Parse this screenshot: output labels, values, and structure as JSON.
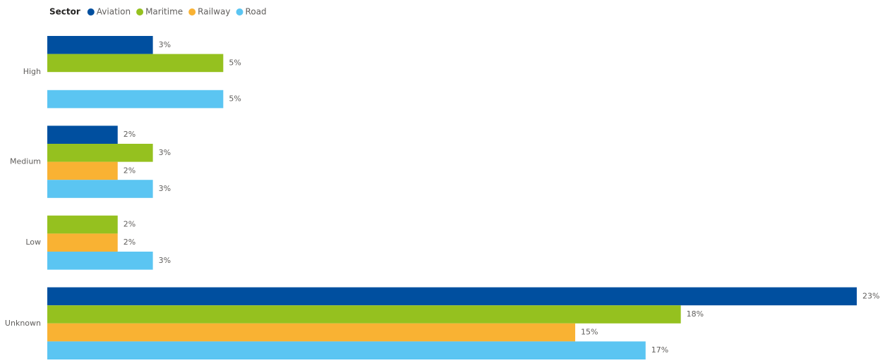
{
  "chart_data": {
    "type": "barh",
    "legend_title": "Sector",
    "categories": [
      "High",
      "Medium",
      "Low",
      "Unknown"
    ],
    "series": [
      {
        "name": "Aviation",
        "color": "#004f9f",
        "values": [
          3,
          2,
          null,
          23
        ],
        "value_labels": [
          "3%",
          "2%",
          null,
          "23%"
        ]
      },
      {
        "name": "Maritime",
        "color": "#95c11f",
        "values": [
          5,
          3,
          2,
          18
        ],
        "value_labels": [
          "5%",
          "3%",
          "2%",
          "18%"
        ]
      },
      {
        "name": "Railway",
        "color": "#f9b233",
        "values": [
          null,
          2,
          2,
          15
        ],
        "value_labels": [
          null,
          "2%",
          "2%",
          "15%"
        ]
      },
      {
        "name": "Road",
        "color": "#5bc5f2",
        "values": [
          5,
          3,
          3,
          17
        ],
        "value_labels": [
          "5%",
          "3%",
          "3%",
          "17%"
        ]
      }
    ],
    "xlim": [
      0,
      23
    ],
    "legend": "top-left"
  }
}
